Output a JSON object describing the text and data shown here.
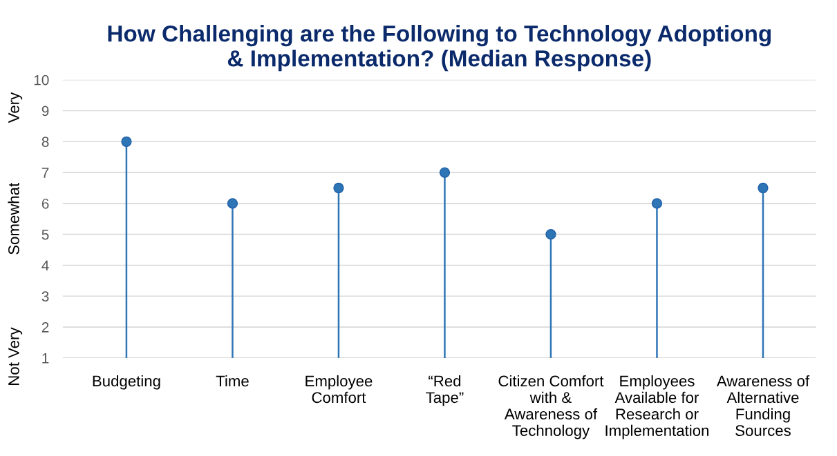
{
  "chart_data": {
    "type": "lollipop",
    "title": "How Challenging are the Following to Technology Adoptiong\n& Implementation? (Median Response)",
    "categories": [
      "Budgeting",
      "Time",
      "Employee\nComfort",
      "“Red\nTape”",
      "Citizen Comfort\nwith &\nAwareness of\nTechnology",
      "Employees\nAvailable for\nResearch or\nImplementation",
      "Awareness of\nAlternative\nFunding\nSources"
    ],
    "values": [
      8,
      6,
      6.5,
      7,
      5,
      6,
      6.5
    ],
    "color": "#2e75b6",
    "ylim": [
      1,
      10
    ],
    "yticks": [
      1,
      2,
      3,
      4,
      5,
      6,
      7,
      8,
      9,
      10
    ],
    "grid": "y",
    "marker": "circle",
    "annotations": [
      "Very",
      "Somewhat",
      "Not Very"
    ]
  }
}
